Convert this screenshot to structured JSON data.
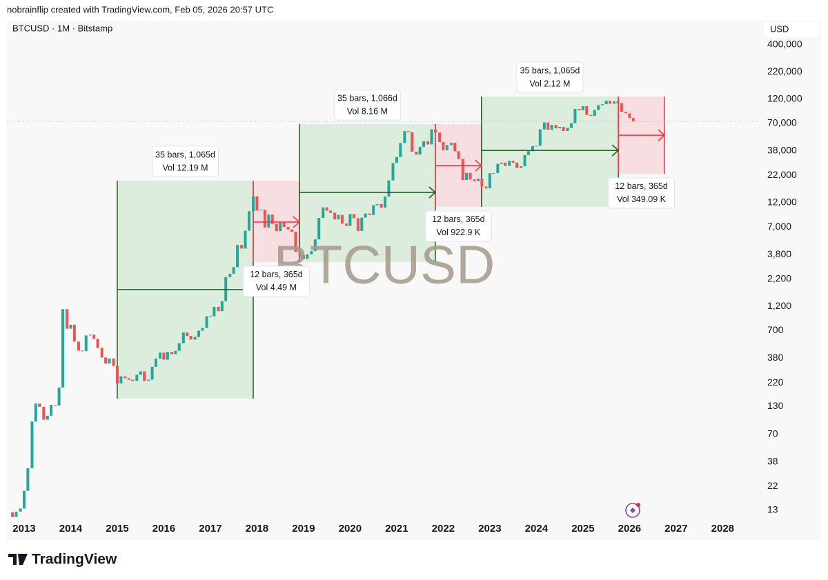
{
  "header": "nobrainflip created with TradingView.com, Feb 05, 2026 20:57 UTC",
  "footer": "TradingView",
  "chart_data": {
    "type": "candlestick",
    "title": "BTCUSD · 1M · Bitstamp",
    "watermark": "BTCUSD",
    "currency": "USD",
    "log_scale": true,
    "grid": false,
    "up_color": "#26a69a",
    "down_color": "#ef5350",
    "xlim": [
      2012.63,
      2028.78
    ],
    "xticks": [
      2013,
      2014,
      2015,
      2016,
      2017,
      2018,
      2019,
      2020,
      2021,
      2022,
      2023,
      2024,
      2025,
      2026,
      2027,
      2028
    ],
    "ylim": [
      10.3,
      684000
    ],
    "yticks": [
      {
        "value": 400000,
        "label": "400,000"
      },
      {
        "value": 220000,
        "label": "220,000"
      },
      {
        "value": 120000,
        "label": "120,000"
      },
      {
        "value": 70000,
        "label": "70,000"
      },
      {
        "value": 38000,
        "label": "38,000"
      },
      {
        "value": 22000,
        "label": "22,000"
      },
      {
        "value": 12000,
        "label": "12,000"
      },
      {
        "value": 7000,
        "label": "7,000"
      },
      {
        "value": 3800,
        "label": "3,800"
      },
      {
        "value": 2200,
        "label": "2,200"
      },
      {
        "value": 1200,
        "label": "1,200"
      },
      700,
      380,
      220,
      130,
      70,
      38,
      22,
      13
    ],
    "x": [
      2012.75,
      2012.83,
      2012.92,
      2013.0,
      2013.08,
      2013.17,
      2013.25,
      2013.33,
      2013.42,
      2013.5,
      2013.58,
      2013.67,
      2013.75,
      2013.83,
      2013.92,
      2014.0,
      2014.08,
      2014.17,
      2014.25,
      2014.33,
      2014.42,
      2014.5,
      2014.58,
      2014.67,
      2014.75,
      2014.83,
      2014.92,
      2015.0,
      2015.08,
      2015.17,
      2015.25,
      2015.33,
      2015.42,
      2015.5,
      2015.58,
      2015.67,
      2015.75,
      2015.83,
      2015.92,
      2016.0,
      2016.08,
      2016.17,
      2016.25,
      2016.33,
      2016.42,
      2016.5,
      2016.58,
      2016.67,
      2016.75,
      2016.83,
      2016.92,
      2017.0,
      2017.08,
      2017.17,
      2017.25,
      2017.33,
      2017.42,
      2017.5,
      2017.58,
      2017.67,
      2017.75,
      2017.83,
      2017.92,
      2018.0,
      2018.08,
      2018.17,
      2018.25,
      2018.33,
      2018.42,
      2018.5,
      2018.58,
      2018.67,
      2018.75,
      2018.83,
      2018.92,
      2019.0,
      2019.08,
      2019.17,
      2019.25,
      2019.33,
      2019.42,
      2019.5,
      2019.58,
      2019.67,
      2019.75,
      2019.83,
      2019.92,
      2020.0,
      2020.08,
      2020.17,
      2020.25,
      2020.33,
      2020.42,
      2020.5,
      2020.58,
      2020.67,
      2020.75,
      2020.83,
      2020.92,
      2021.0,
      2021.08,
      2021.17,
      2021.25,
      2021.33,
      2021.42,
      2021.5,
      2021.58,
      2021.67,
      2021.75,
      2021.83,
      2021.92,
      2022.0,
      2022.08,
      2022.17,
      2022.25,
      2022.33,
      2022.42,
      2022.5,
      2022.58,
      2022.67,
      2022.75,
      2022.83,
      2022.92,
      2023.0,
      2023.08,
      2023.17,
      2023.25,
      2023.33,
      2023.42,
      2023.5,
      2023.58,
      2023.67,
      2023.75,
      2023.83,
      2023.92,
      2024.0,
      2024.08,
      2024.17,
      2024.25,
      2024.33,
      2024.42,
      2024.5,
      2024.58,
      2024.67,
      2024.75,
      2024.83,
      2024.92,
      2025.0,
      2025.08,
      2025.17,
      2025.25,
      2025.33,
      2025.42,
      2025.5,
      2025.58,
      2025.67,
      2025.75,
      2025.83,
      2025.92,
      2026.0,
      2026.08
    ],
    "open": [
      12.4,
      11.2,
      12.6,
      13.5,
      20,
      33,
      93,
      139,
      129,
      97,
      106,
      135,
      133,
      198,
      1130,
      732,
      800,
      550,
      450,
      445,
      630,
      640,
      585,
      478,
      386,
      338,
      378,
      320,
      217,
      254,
      244,
      236,
      230,
      263,
      284,
      230,
      236,
      314,
      377,
      430,
      368,
      437,
      416,
      448,
      531,
      673,
      624,
      575,
      609,
      700,
      742,
      964,
      965,
      1190,
      1080,
      1348,
      2300,
      2480,
      2875,
      4700,
      4340,
      6450,
      9950,
      13850,
      10100,
      10300,
      6930,
      9240,
      7500,
      6390,
      7730,
      7020,
      6630,
      6300,
      4040,
      3740,
      3440,
      3820,
      4100,
      5320,
      8570,
      10820,
      10080,
      9600,
      8300,
      9150,
      7550,
      7200,
      9350,
      8520,
      6410,
      8630,
      9450,
      9140,
      11350,
      11650,
      10780,
      13800,
      19700,
      28950,
      33100,
      45200,
      58800,
      57700,
      37300,
      35000,
      41500,
      47100,
      43800,
      61300,
      57000,
      46200,
      38500,
      43200,
      45500,
      37700,
      31800,
      19900,
      23300,
      20100,
      19400,
      20500,
      17200,
      16550,
      23100,
      23150,
      28450,
      29250,
      27200,
      30480,
      29230,
      25940,
      26970,
      34650,
      37720,
      42260,
      42580,
      61180,
      71330,
      60640,
      67500,
      62700,
      64600,
      59000,
      63300,
      70200,
      96400,
      93400,
      102400,
      84350,
      82500,
      94200,
      104600,
      107100,
      115700,
      108200,
      114000,
      109500,
      90400,
      87500,
      78700
    ],
    "close": [
      11.2,
      12.6,
      13.5,
      20,
      33,
      93,
      139,
      129,
      97,
      106,
      135,
      133,
      198,
      1130,
      732,
      800,
      550,
      450,
      445,
      630,
      640,
      585,
      478,
      386,
      338,
      378,
      320,
      217,
      254,
      244,
      236,
      230,
      263,
      284,
      230,
      236,
      314,
      377,
      430,
      368,
      437,
      416,
      448,
      531,
      673,
      624,
      575,
      609,
      700,
      742,
      964,
      965,
      1190,
      1080,
      1348,
      2300,
      2480,
      2875,
      4700,
      4340,
      6450,
      9950,
      13850,
      10100,
      10300,
      6930,
      9240,
      7500,
      6390,
      7730,
      7020,
      6630,
      6300,
      4040,
      3740,
      3440,
      3820,
      4100,
      5320,
      8570,
      10820,
      10080,
      9600,
      8300,
      9150,
      7550,
      7200,
      9350,
      8520,
      6410,
      8630,
      9450,
      9140,
      11350,
      11650,
      10780,
      13800,
      19700,
      28950,
      33100,
      45200,
      58800,
      57700,
      37300,
      35000,
      41500,
      47100,
      43800,
      61300,
      57000,
      46200,
      38500,
      43200,
      45500,
      37700,
      31800,
      19900,
      23300,
      20100,
      19400,
      20500,
      17200,
      16550,
      23100,
      23150,
      28450,
      29250,
      27200,
      30480,
      29230,
      25940,
      26970,
      34650,
      37720,
      42260,
      42580,
      61180,
      71330,
      60640,
      67500,
      62700,
      64600,
      59000,
      63300,
      70200,
      96400,
      93400,
      102400,
      84350,
      82500,
      94200,
      104600,
      107100,
      115700,
      108200,
      114000,
      109500,
      90400,
      87500,
      78700,
      73000
    ],
    "ranges": [
      {
        "x": [
          2015.0,
          2017.92
        ],
        "y": [
          155,
          19600
        ],
        "arrow": 1745,
        "fill": "rgba(76,175,80,0.16)",
        "line": "#1b5e20",
        "label": "35 bars, 1,065d",
        "volume": "Vol 12.19 M",
        "label_position": "above"
      },
      {
        "x": [
          2017.92,
          2018.91
        ],
        "y": [
          3220,
          19600
        ],
        "arrow": 7820,
        "fill": "rgba(242,54,69,0.13)",
        "line": "#f23645",
        "label": "12 bars, 365d",
        "volume": "Vol 4.49 M",
        "label_position": "below"
      },
      {
        "x": [
          2018.91,
          2021.83
        ],
        "y": [
          3220,
          68700
        ],
        "arrow": 15100,
        "fill": "rgba(76,175,80,0.16)",
        "line": "#1b5e20",
        "label": "35 bars, 1,066d",
        "volume": "Vol 8.16 M",
        "label_position": "above"
      },
      {
        "x": [
          2021.83,
          2022.82
        ],
        "y": [
          10960,
          68700
        ],
        "arrow": 27400,
        "fill": "rgba(242,54,69,0.13)",
        "line": "#f23645",
        "label": "12 bars, 365d",
        "volume": "Vol 922.9 K",
        "label_position": "below"
      },
      {
        "x": [
          2022.82,
          2025.76
        ],
        "y": [
          10960,
          126800
        ],
        "arrow": 38400,
        "fill": "rgba(76,175,80,0.16)",
        "line": "#1b5e20",
        "label": "35 bars, 1,065d",
        "volume": "Vol 2.12 M",
        "label_position": "above"
      },
      {
        "x": [
          2025.76,
          2026.75
        ],
        "y": [
          22860,
          126800
        ],
        "arrow": 53800,
        "fill": "rgba(242,54,69,0.13)",
        "line": "#f23645",
        "label": "12 bars, 365d",
        "volume": "Vol 349.09 K",
        "label_position": "below"
      }
    ]
  }
}
